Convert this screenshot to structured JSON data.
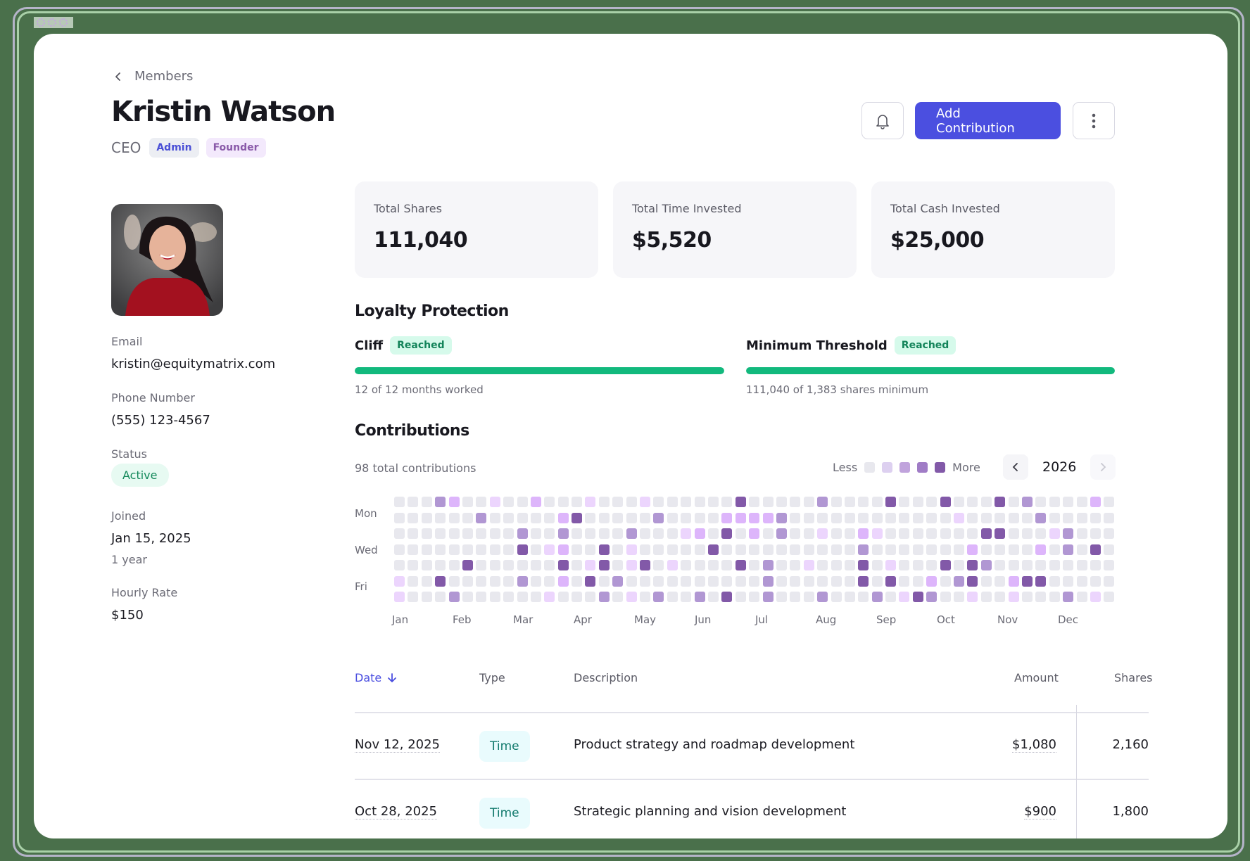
{
  "breadcrumb": {
    "back_label": "Members"
  },
  "profile": {
    "name": "Kristin Watson",
    "role": "CEO",
    "tags": [
      {
        "label": "Admin",
        "color": "#4a4fd6",
        "bg": "#eceef3"
      },
      {
        "label": "Founder",
        "color": "#8a5aa9",
        "bg": "#f3e9fc"
      }
    ],
    "avatar_alt": "Portrait of Kristin Watson",
    "fields": {
      "email_label": "Email",
      "email": "kristin@equitymatrix.com",
      "phone_label": "Phone Number",
      "phone": "(555) 123-4567",
      "status_label": "Status",
      "status": "Active",
      "joined_label": "Joined",
      "joined": "Jan 15, 2025",
      "tenure": "1 year",
      "rate_label": "Hourly Rate",
      "rate": "$150"
    }
  },
  "toolbar": {
    "bell_icon": "bell-icon",
    "add_contribution_label": "Add Contribution",
    "more_icon": "more-vertical-icon",
    "accent": "#4b4fe0"
  },
  "stats": [
    {
      "label": "Total Shares",
      "value": "111,040"
    },
    {
      "label": "Total Time Invested",
      "value": "$5,520"
    },
    {
      "label": "Total Cash Invested",
      "value": "$25,000"
    }
  ],
  "loyalty": {
    "title": "Loyalty Protection",
    "cliff": {
      "label": "Cliff",
      "badge": "Reached",
      "progress_pct": 100,
      "caption": "12 of 12 months worked"
    },
    "threshold": {
      "label": "Minimum Threshold",
      "badge": "Reached",
      "progress_pct": 100,
      "caption": "111,040 of 1,383 shares minimum"
    },
    "bar_color": "#12b97d"
  },
  "contributions": {
    "title": "Contributions",
    "total_text": "98 total contributions",
    "legend_less": "Less",
    "legend_more": "More",
    "year": "2026",
    "level_colors": [
      "#e8e8ee",
      "#ecd5fd",
      "#ddb5fb",
      "#b197d3",
      "#8259a8"
    ],
    "day_labels": {
      "mon": "Mon",
      "wed": "Wed",
      "fri": "Fri"
    },
    "months": [
      "Jan",
      "Feb",
      "Mar",
      "Apr",
      "May",
      "Jun",
      "Jul",
      "Aug",
      "Sep",
      "Oct",
      "Nov",
      "Dec"
    ],
    "weeks": [
      [
        0,
        0,
        0,
        0,
        0,
        1,
        1
      ],
      [
        0,
        0,
        0,
        0,
        0,
        0,
        0
      ],
      [
        0,
        0,
        0,
        0,
        0,
        0,
        0
      ],
      [
        3,
        0,
        0,
        0,
        0,
        4,
        0
      ],
      [
        2,
        0,
        0,
        0,
        0,
        0,
        3
      ],
      [
        0,
        0,
        0,
        0,
        4,
        0,
        0
      ],
      [
        0,
        3,
        0,
        0,
        0,
        0,
        0
      ],
      [
        1,
        0,
        0,
        0,
        0,
        0,
        0
      ],
      [
        0,
        0,
        0,
        0,
        0,
        0,
        0
      ],
      [
        0,
        0,
        3,
        4,
        0,
        3,
        0
      ],
      [
        2,
        0,
        0,
        0,
        0,
        0,
        0
      ],
      [
        0,
        0,
        0,
        1,
        0,
        0,
        1
      ],
      [
        0,
        2,
        3,
        2,
        4,
        2,
        0
      ],
      [
        0,
        4,
        0,
        0,
        0,
        0,
        0
      ],
      [
        1,
        0,
        0,
        0,
        1,
        4,
        0
      ],
      [
        0,
        0,
        0,
        4,
        4,
        0,
        3
      ],
      [
        0,
        0,
        0,
        0,
        0,
        3,
        0
      ],
      [
        0,
        0,
        3,
        1,
        1,
        0,
        1
      ],
      [
        1,
        0,
        0,
        0,
        4,
        0,
        0
      ],
      [
        0,
        3,
        0,
        0,
        0,
        0,
        3
      ],
      [
        0,
        0,
        0,
        0,
        1,
        0,
        0
      ],
      [
        0,
        0,
        1,
        0,
        0,
        0,
        0
      ],
      [
        0,
        0,
        2,
        0,
        0,
        0,
        3
      ],
      [
        0,
        0,
        0,
        4,
        0,
        0,
        0
      ],
      [
        0,
        2,
        4,
        0,
        0,
        0,
        4
      ],
      [
        4,
        2,
        0,
        0,
        4,
        0,
        0
      ],
      [
        0,
        2,
        2,
        0,
        0,
        0,
        0
      ],
      [
        0,
        2,
        0,
        0,
        3,
        3,
        3
      ],
      [
        0,
        3,
        3,
        0,
        0,
        0,
        0
      ],
      [
        0,
        0,
        0,
        0,
        0,
        0,
        0
      ],
      [
        0,
        0,
        0,
        0,
        1,
        0,
        0
      ],
      [
        3,
        0,
        1,
        0,
        0,
        0,
        3
      ],
      [
        0,
        0,
        0,
        0,
        0,
        0,
        0
      ],
      [
        0,
        0,
        0,
        0,
        0,
        0,
        0
      ],
      [
        0,
        0,
        2,
        3,
        4,
        4,
        0
      ],
      [
        0,
        0,
        1,
        0,
        0,
        0,
        3
      ],
      [
        4,
        0,
        0,
        0,
        1,
        4,
        0
      ],
      [
        0,
        0,
        0,
        0,
        0,
        0,
        1
      ],
      [
        0,
        0,
        0,
        0,
        0,
        0,
        4
      ],
      [
        0,
        0,
        0,
        0,
        0,
        2,
        3
      ],
      [
        4,
        0,
        0,
        0,
        4,
        0,
        0
      ],
      [
        0,
        1,
        0,
        0,
        0,
        3,
        0
      ],
      [
        0,
        0,
        0,
        2,
        4,
        4,
        1
      ],
      [
        0,
        0,
        4,
        0,
        3,
        0,
        0
      ],
      [
        4,
        0,
        4,
        0,
        0,
        0,
        0
      ],
      [
        0,
        0,
        0,
        0,
        0,
        2,
        1
      ],
      [
        3,
        0,
        0,
        0,
        0,
        4,
        0
      ],
      [
        0,
        3,
        0,
        2,
        0,
        4,
        0
      ],
      [
        0,
        0,
        1,
        0,
        0,
        0,
        0
      ],
      [
        0,
        0,
        3,
        3,
        0,
        0,
        3
      ],
      [
        0,
        0,
        0,
        0,
        0,
        0,
        0
      ],
      [
        2,
        0,
        0,
        4,
        0,
        0,
        1
      ],
      [
        0,
        0,
        0,
        0,
        0,
        0,
        0
      ]
    ]
  },
  "table": {
    "headers": {
      "date": "Date",
      "type": "Type",
      "description": "Description",
      "amount": "Amount",
      "shares": "Shares"
    },
    "sort_icon": "arrow-down-icon",
    "rows": [
      {
        "date": "Nov 12, 2025",
        "type": "Time",
        "description": "Product strategy and roadmap development",
        "amount": "$1,080",
        "shares": "2,160"
      },
      {
        "date": "Oct 28, 2025",
        "type": "Time",
        "description": "Strategic planning and vision development",
        "amount": "$900",
        "shares": "1,800"
      }
    ]
  }
}
